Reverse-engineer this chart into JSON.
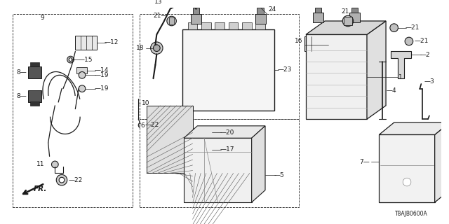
{
  "bg_color": "#ffffff",
  "line_color": "#1a1a1a",
  "diagram_code": "T8AJB0600A",
  "fig_w": 6.4,
  "fig_h": 3.2,
  "dpi": 100
}
